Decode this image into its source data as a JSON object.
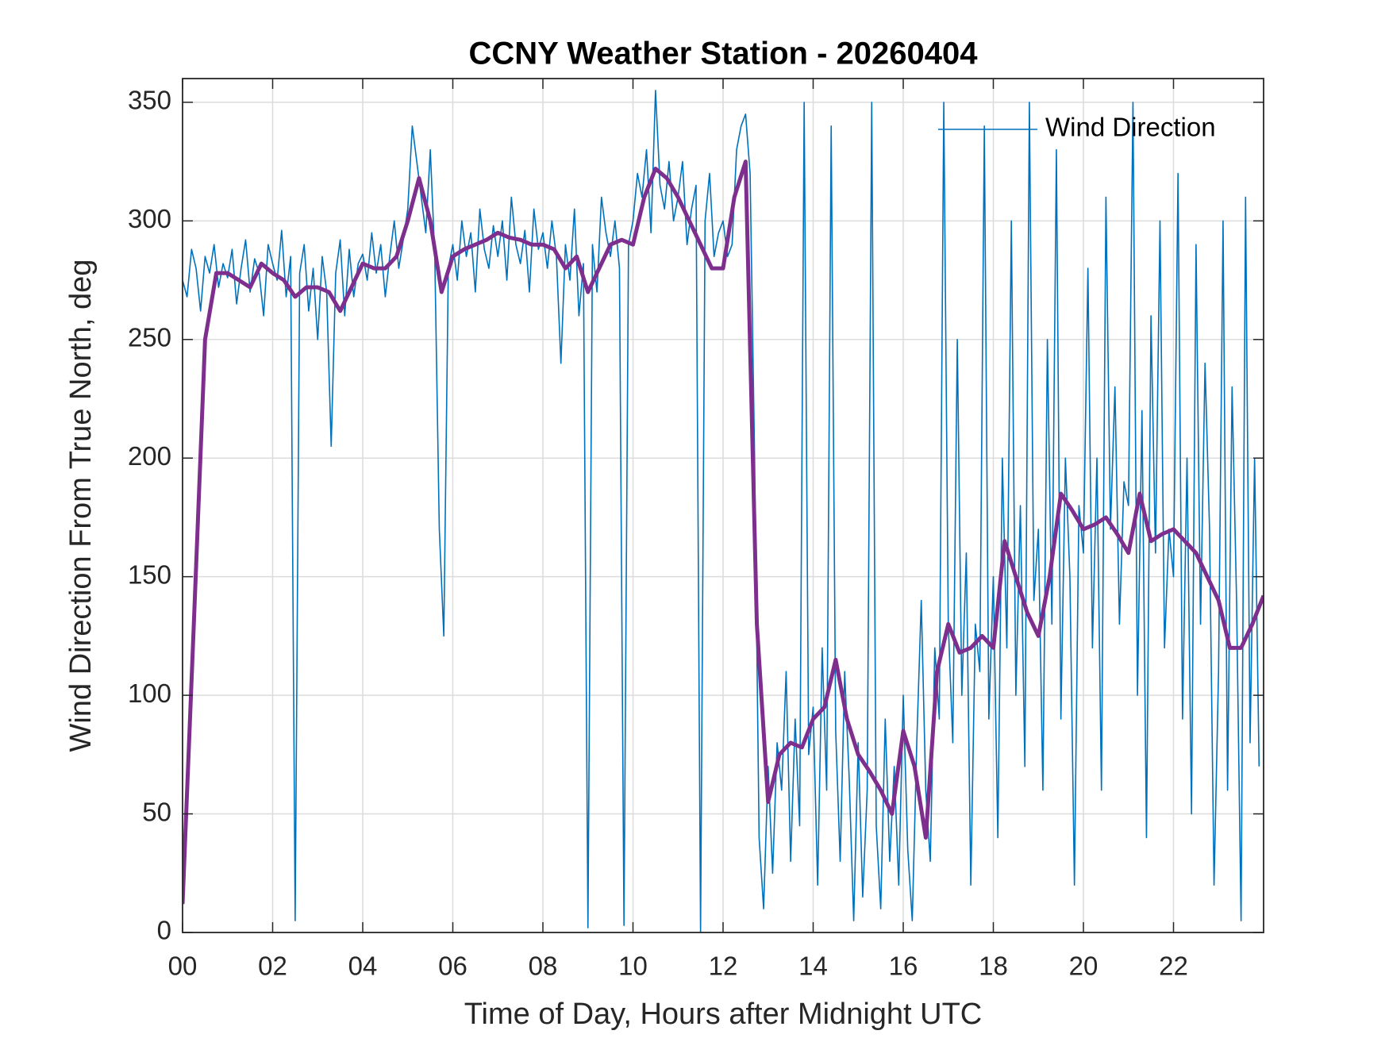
{
  "chart_data": {
    "type": "line",
    "title": "CCNY Weather Station - 20260404",
    "xlabel": "Time of Day, Hours after Midnight UTC",
    "ylabel": "Wind Direction From True North, deg",
    "xlim": [
      0,
      24
    ],
    "ylim": [
      0,
      360
    ],
    "xticks": [
      {
        "value": 0,
        "label": "00"
      },
      {
        "value": 2,
        "label": "02"
      },
      {
        "value": 4,
        "label": "04"
      },
      {
        "value": 6,
        "label": "06"
      },
      {
        "value": 8,
        "label": "08"
      },
      {
        "value": 10,
        "label": "10"
      },
      {
        "value": 12,
        "label": "12"
      },
      {
        "value": 14,
        "label": "14"
      },
      {
        "value": 16,
        "label": "16"
      },
      {
        "value": 18,
        "label": "18"
      },
      {
        "value": 20,
        "label": "20"
      },
      {
        "value": 22,
        "label": "22"
      }
    ],
    "yticks": [
      0,
      50,
      100,
      150,
      200,
      250,
      300,
      350
    ],
    "grid": true,
    "legend": "upper right",
    "series": [
      {
        "name": "Wind Direction",
        "color": "#0072bd",
        "width": 1.6,
        "x": [
          0,
          0.1,
          0.2,
          0.3,
          0.4,
          0.5,
          0.6,
          0.7,
          0.8,
          0.9,
          1,
          1.1,
          1.2,
          1.3,
          1.4,
          1.5,
          1.6,
          1.7,
          1.8,
          1.9,
          2,
          2.1,
          2.2,
          2.3,
          2.4,
          2.5,
          2.6,
          2.7,
          2.8,
          2.9,
          3,
          3.1,
          3.2,
          3.3,
          3.4,
          3.5,
          3.6,
          3.7,
          3.8,
          3.9,
          4,
          4.1,
          4.2,
          4.3,
          4.4,
          4.5,
          4.6,
          4.7,
          4.8,
          4.9,
          5,
          5.1,
          5.2,
          5.3,
          5.4,
          5.5,
          5.6,
          5.7,
          5.8,
          5.9,
          6,
          6.1,
          6.2,
          6.3,
          6.4,
          6.5,
          6.6,
          6.7,
          6.8,
          6.9,
          7,
          7.1,
          7.2,
          7.3,
          7.4,
          7.5,
          7.6,
          7.7,
          7.8,
          7.9,
          8,
          8.1,
          8.2,
          8.3,
          8.4,
          8.5,
          8.6,
          8.7,
          8.8,
          8.9,
          9,
          9.1,
          9.2,
          9.3,
          9.4,
          9.5,
          9.6,
          9.7,
          9.8,
          9.9,
          10,
          10.1,
          10.2,
          10.3,
          10.4,
          10.5,
          10.6,
          10.7,
          10.8,
          10.9,
          11,
          11.1,
          11.2,
          11.3,
          11.4,
          11.5,
          11.6,
          11.7,
          11.8,
          11.9,
          12,
          12.1,
          12.2,
          12.3,
          12.4,
          12.5,
          12.6,
          12.7,
          12.8,
          12.9,
          13,
          13.1,
          13.2,
          13.3,
          13.4,
          13.5,
          13.6,
          13.7,
          13.8,
          13.9,
          14,
          14.1,
          14.2,
          14.3,
          14.4,
          14.5,
          14.6,
          14.7,
          14.8,
          14.9,
          15,
          15.1,
          15.2,
          15.3,
          15.4,
          15.5,
          15.6,
          15.7,
          15.8,
          15.9,
          16,
          16.1,
          16.2,
          16.3,
          16.4,
          16.5,
          16.6,
          16.7,
          16.8,
          16.9,
          17,
          17.1,
          17.2,
          17.3,
          17.4,
          17.5,
          17.6,
          17.7,
          17.8,
          17.9,
          18,
          18.1,
          18.2,
          18.3,
          18.4,
          18.5,
          18.6,
          18.7,
          18.8,
          18.9,
          19,
          19.1,
          19.2,
          19.3,
          19.4,
          19.5,
          19.6,
          19.7,
          19.8,
          19.9,
          20,
          20.1,
          20.2,
          20.3,
          20.4,
          20.5,
          20.6,
          20.7,
          20.8,
          20.9,
          21,
          21.1,
          21.2,
          21.3,
          21.4,
          21.5,
          21.6,
          21.7,
          21.8,
          21.9,
          22,
          22.1,
          22.2,
          22.3,
          22.4,
          22.5,
          22.6,
          22.7,
          22.8,
          22.9,
          23,
          23.1,
          23.2,
          23.3,
          23.4,
          23.5,
          23.6,
          23.7,
          23.8,
          23.9
        ],
        "values": [
          275,
          268,
          288,
          280,
          262,
          285,
          278,
          290,
          272,
          282,
          276,
          288,
          265,
          280,
          292,
          270,
          284,
          278,
          260,
          290,
          282,
          275,
          296,
          268,
          285,
          5,
          278,
          290,
          262,
          280,
          250,
          285,
          270,
          205,
          278,
          292,
          260,
          288,
          268,
          282,
          286,
          275,
          295,
          278,
          290,
          268,
          285,
          300,
          280,
          292,
          305,
          340,
          325,
          310,
          295,
          330,
          285,
          170,
          125,
          280,
          290,
          275,
          300,
          285,
          295,
          270,
          305,
          288,
          280,
          298,
          285,
          300,
          275,
          310,
          290,
          282,
          296,
          270,
          305,
          288,
          295,
          280,
          300,
          285,
          240,
          290,
          275,
          305,
          260,
          282,
          2,
          290,
          270,
          310,
          295,
          285,
          300,
          280,
          3,
          290,
          300,
          320,
          310,
          330,
          295,
          355,
          315,
          305,
          325,
          300,
          310,
          325,
          290,
          305,
          315,
          0,
          300,
          320,
          285,
          295,
          300,
          285,
          290,
          330,
          340,
          345,
          320,
          200,
          40,
          10,
          70,
          25,
          80,
          60,
          110,
          30,
          90,
          45,
          350,
          75,
          95,
          20,
          120,
          60,
          340,
          85,
          30,
          110,
          65,
          5,
          80,
          15,
          60,
          350,
          45,
          10,
          90,
          30,
          70,
          20,
          100,
          35,
          5,
          80,
          140,
          60,
          30,
          120,
          90,
          350,
          130,
          80,
          250,
          100,
          160,
          20,
          130,
          110,
          340,
          90,
          150,
          40,
          200,
          120,
          300,
          100,
          180,
          70,
          350,
          140,
          170,
          60,
          250,
          130,
          330,
          90,
          200,
          150,
          20,
          180,
          160,
          280,
          120,
          200,
          60,
          310,
          170,
          230,
          130,
          190,
          180,
          350,
          100,
          220,
          40,
          260,
          160,
          300,
          120,
          170,
          150,
          320,
          90,
          200,
          50,
          290,
          130,
          240,
          170,
          20,
          110,
          300,
          60,
          230,
          140,
          5,
          310,
          80,
          200,
          70
        ]
      },
      {
        "color": "#7e2f8e",
        "width": 5,
        "x": [
          0,
          0.25,
          0.5,
          0.75,
          1,
          1.25,
          1.5,
          1.75,
          2,
          2.25,
          2.5,
          2.75,
          3,
          3.25,
          3.5,
          3.75,
          4,
          4.25,
          4.5,
          4.75,
          5,
          5.25,
          5.5,
          5.75,
          6,
          6.25,
          6.5,
          6.75,
          7,
          7.25,
          7.5,
          7.75,
          8,
          8.25,
          8.5,
          8.75,
          9,
          9.25,
          9.5,
          9.75,
          10,
          10.25,
          10.5,
          10.75,
          11,
          11.25,
          11.5,
          11.75,
          12,
          12.25,
          12.5,
          12.75,
          13,
          13.25,
          13.5,
          13.75,
          14,
          14.25,
          14.5,
          14.75,
          15,
          15.25,
          15.5,
          15.75,
          16,
          16.25,
          16.5,
          16.75,
          17,
          17.25,
          17.5,
          17.75,
          18,
          18.25,
          18.5,
          18.75,
          19,
          19.25,
          19.5,
          19.75,
          20,
          20.25,
          20.5,
          20.75,
          21,
          21.25,
          21.5,
          21.75,
          22,
          22.25,
          22.5,
          22.75,
          23,
          23.25,
          23.5,
          23.75,
          24
        ],
        "values": [
          12,
          130,
          250,
          278,
          278,
          275,
          272,
          282,
          278,
          275,
          268,
          272,
          272,
          270,
          262,
          272,
          282,
          280,
          280,
          285,
          300,
          318,
          300,
          270,
          285,
          288,
          290,
          292,
          295,
          293,
          292,
          290,
          290,
          288,
          280,
          285,
          270,
          280,
          290,
          292,
          290,
          310,
          322,
          318,
          310,
          300,
          290,
          280,
          280,
          310,
          325,
          130,
          55,
          75,
          80,
          78,
          90,
          95,
          115,
          90,
          75,
          68,
          60,
          50,
          85,
          70,
          40,
          110,
          130,
          118,
          120,
          125,
          120,
          165,
          150,
          135,
          125,
          150,
          185,
          178,
          170,
          172,
          175,
          168,
          160,
          185,
          165,
          168,
          170,
          165,
          160,
          150,
          140,
          120,
          120,
          130,
          142
        ]
      }
    ]
  }
}
